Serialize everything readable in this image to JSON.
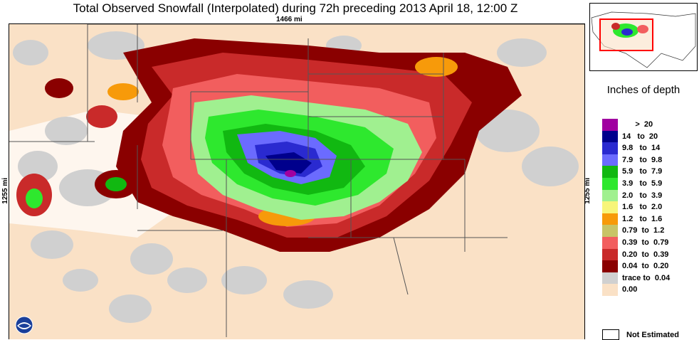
{
  "title": "Total Observed Snowfall (Interpolated) during 72h preceding 2013 April 18, 12:00 Z",
  "scale_horizontal": "1466 mi",
  "scale_vertical": "1255 mi",
  "legend": {
    "title": "Inches of depth",
    "rows": [
      {
        "label": "      >  20",
        "color": "#a000a0"
      },
      {
        "label": "14   to  20",
        "color": "#00008c"
      },
      {
        "label": "9.8   to  14",
        "color": "#2a2ad0"
      },
      {
        "label": "7.9   to  9.8",
        "color": "#6b6bff"
      },
      {
        "label": "5.9   to  7.9",
        "color": "#11b811"
      },
      {
        "label": "3.9   to  5.9",
        "color": "#2ee82e"
      },
      {
        "label": "2.0   to  3.9",
        "color": "#a0f090"
      },
      {
        "label": "1.6   to  2.0",
        "color": "#f7f57a"
      },
      {
        "label": "1.2   to  1.6",
        "color": "#f79a0a"
      },
      {
        "label": "0.79  to  1.2",
        "color": "#c8c466"
      },
      {
        "label": "0.39  to  0.79",
        "color": "#f25e5e"
      },
      {
        "label": "0.20  to  0.39",
        "color": "#c92a2a"
      },
      {
        "label": "0.04  to  0.20",
        "color": "#8a0000"
      },
      {
        "label": "trace to  0.04",
        "color": "#d0d0d0"
      },
      {
        "label": "0.00",
        "color": "#fae1c6"
      }
    ],
    "not_estimated": "Not Estimated"
  },
  "colors": {
    "land_no_snow": "#fae1c6",
    "state_border": "#555555",
    "inset_box": "#ff0000"
  },
  "icons": {
    "logo": "noaa-logo-icon"
  }
}
